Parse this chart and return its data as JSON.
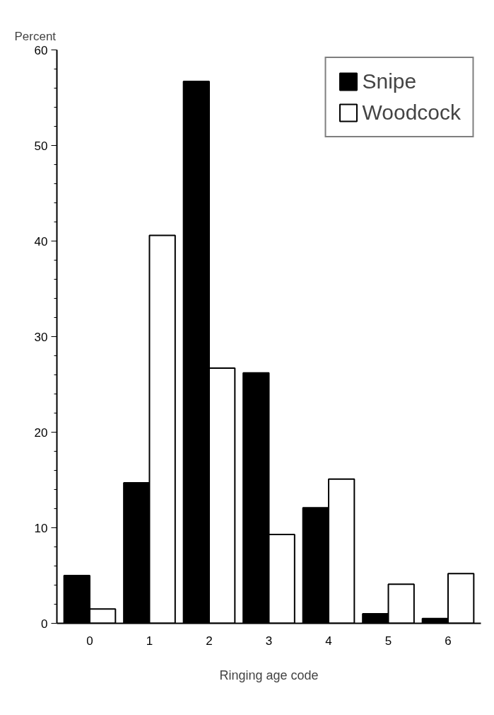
{
  "chart_data": {
    "type": "bar",
    "xlabel": "Ringing age code",
    "ylabel": "Percent",
    "categories": [
      "0",
      "1",
      "2",
      "3",
      "4",
      "5",
      "6"
    ],
    "series": [
      {
        "name": "Snipe",
        "color": "#000000",
        "values": [
          5.0,
          14.7,
          56.7,
          26.2,
          12.1,
          1.0,
          0.5
        ]
      },
      {
        "name": "Woodcock",
        "color": "#ffffff",
        "values": [
          1.5,
          40.6,
          26.7,
          9.3,
          15.1,
          4.1,
          5.2
        ]
      }
    ],
    "ylim": [
      0,
      60
    ],
    "yticks": [
      0,
      10,
      20,
      30,
      40,
      50,
      60
    ],
    "grid": false,
    "legend": "top right"
  }
}
